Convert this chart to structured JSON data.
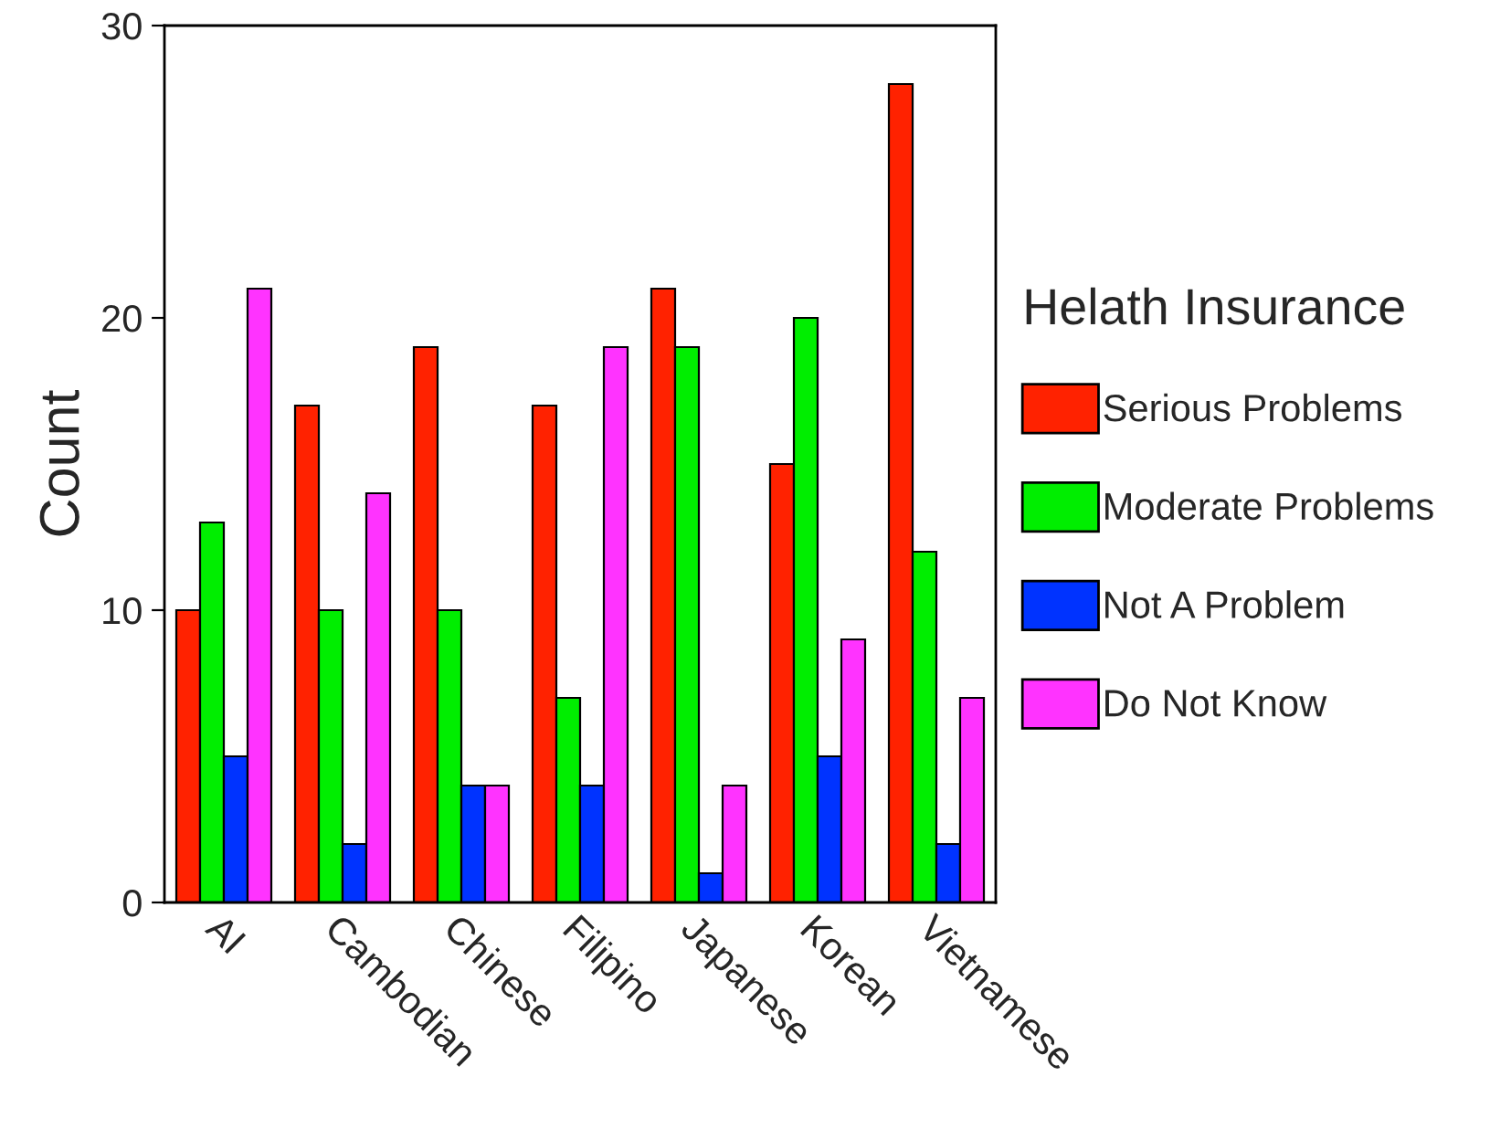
{
  "chart_data": {
    "type": "bar",
    "ylabel": "Count",
    "legend_title": "Helath Insurance",
    "legend": "right",
    "grid": false,
    "categories": [
      "AI",
      "Cambodian",
      "Chinese",
      "Filipino",
      "Japanese",
      "Korean",
      "Vietnamese"
    ],
    "series": [
      {
        "name": "Serious Problems",
        "color": "#ff2200",
        "values": [
          10,
          17,
          19,
          17,
          21,
          15,
          28
        ]
      },
      {
        "name": "Moderate Problems",
        "color": "#00ee00",
        "values": [
          13,
          10,
          10,
          7,
          19,
          20,
          12
        ]
      },
      {
        "name": "Not A Problem",
        "color": "#0033ff",
        "values": [
          5,
          2,
          4,
          4,
          1,
          5,
          2
        ]
      },
      {
        "name": "Do Not Know",
        "color": "#ff33ff",
        "values": [
          21,
          14,
          4,
          19,
          4,
          9,
          7
        ]
      }
    ],
    "ylim": [
      0,
      30
    ],
    "yticks": [
      0,
      10,
      20,
      30
    ]
  }
}
